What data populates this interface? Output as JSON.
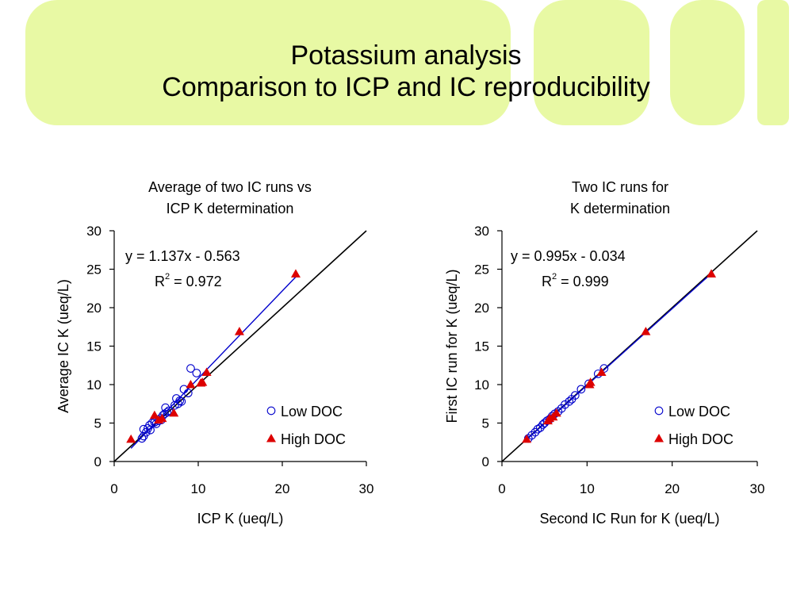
{
  "slide": {
    "title_line1": "Potassium analysis",
    "title_line2": "Comparison to ICP and IC reproducibility",
    "banner_color": "#e8f9a4"
  },
  "chart_data": [
    {
      "type": "scatter",
      "title": [
        "Average of two IC runs vs",
        "ICP K determination"
      ],
      "xlabel": "ICP K (ueq/L)",
      "ylabel": "Average IC K (ueq/L)",
      "xlim": [
        0,
        30
      ],
      "ylim": [
        0,
        30
      ],
      "xticks": [
        0,
        10,
        20,
        30
      ],
      "yticks": [
        0,
        5,
        10,
        15,
        20,
        25,
        30
      ],
      "grid": false,
      "legend_position": "bottom-right",
      "equation": "y = 1.137x - 0.563",
      "r_squared_prefix": "R",
      "r_squared_exponent": "2",
      "r_squared_value": " = 0.972",
      "identity_line": {
        "from": [
          0,
          0
        ],
        "to": [
          30,
          30
        ],
        "color": "#000000"
      },
      "trendline": {
        "slope": 1.137,
        "intercept": -0.563,
        "x_range": [
          2,
          21.6
        ],
        "color": "#0000cc"
      },
      "series": [
        {
          "name": "Low DOC",
          "marker": "circle",
          "color": "#0000cc",
          "points": [
            [
              3.3,
              3.0
            ],
            [
              3.5,
              3.3
            ],
            [
              3.5,
              4.2
            ],
            [
              3.8,
              3.8
            ],
            [
              4.0,
              4.3
            ],
            [
              4.2,
              4.7
            ],
            [
              4.3,
              4.1
            ],
            [
              4.5,
              5.0
            ],
            [
              4.8,
              5.1
            ],
            [
              5.0,
              4.9
            ],
            [
              5.3,
              5.3
            ],
            [
              5.5,
              5.6
            ],
            [
              5.6,
              5.4
            ],
            [
              5.8,
              6.0
            ],
            [
              6.0,
              6.2
            ],
            [
              6.1,
              7.0
            ],
            [
              6.3,
              6.4
            ],
            [
              6.5,
              6.6
            ],
            [
              7.2,
              7.3
            ],
            [
              7.4,
              8.2
            ],
            [
              7.6,
              7.5
            ],
            [
              7.8,
              7.9
            ],
            [
              8.0,
              7.8
            ],
            [
              8.3,
              9.4
            ],
            [
              8.8,
              8.9
            ],
            [
              9.1,
              12.1
            ],
            [
              9.8,
              11.5
            ]
          ]
        },
        {
          "name": "High DOC",
          "marker": "triangle",
          "color": "#dd0000",
          "points": [
            [
              2.0,
              2.9
            ],
            [
              4.8,
              6.0
            ],
            [
              5.3,
              5.4
            ],
            [
              5.7,
              5.6
            ],
            [
              7.1,
              6.3
            ],
            [
              9.1,
              10.0
            ],
            [
              10.3,
              10.2
            ],
            [
              10.5,
              10.3
            ],
            [
              11.0,
              11.6
            ],
            [
              14.9,
              16.9
            ],
            [
              21.6,
              24.4
            ]
          ]
        }
      ]
    },
    {
      "type": "scatter",
      "title": [
        "Two IC runs for",
        "K determination"
      ],
      "xlabel": "Second IC Run for K (ueq/L)",
      "ylabel": "First IC run for K (ueq/L)",
      "xlim": [
        0,
        30
      ],
      "ylim": [
        0,
        30
      ],
      "xticks": [
        0,
        10,
        20,
        30
      ],
      "yticks": [
        0,
        5,
        10,
        15,
        20,
        25,
        30
      ],
      "grid": false,
      "legend_position": "bottom-right",
      "equation": "y = 0.995x - 0.034",
      "r_squared_prefix": "R",
      "r_squared_exponent": "2",
      "r_squared_value": " = 0.999",
      "identity_line": {
        "from": [
          0,
          0
        ],
        "to": [
          30,
          30
        ],
        "color": "#000000"
      },
      "trendline": {
        "slope": 0.995,
        "intercept": -0.034,
        "x_range": [
          2.9,
          24.6
        ],
        "color": "#0000cc"
      },
      "series": [
        {
          "name": "Low DOC",
          "marker": "circle",
          "color": "#0000cc",
          "points": [
            [
              3.1,
              3.0
            ],
            [
              3.5,
              3.4
            ],
            [
              3.9,
              3.8
            ],
            [
              4.2,
              4.2
            ],
            [
              4.5,
              4.4
            ],
            [
              4.8,
              4.8
            ],
            [
              5.0,
              5.0
            ],
            [
              5.3,
              5.3
            ],
            [
              5.6,
              5.5
            ],
            [
              5.9,
              5.9
            ],
            [
              6.2,
              6.2
            ],
            [
              6.6,
              6.5
            ],
            [
              7.0,
              6.9
            ],
            [
              7.4,
              7.4
            ],
            [
              7.9,
              7.8
            ],
            [
              8.2,
              8.1
            ],
            [
              8.6,
              8.6
            ],
            [
              9.3,
              9.4
            ],
            [
              10.2,
              10.1
            ],
            [
              11.3,
              11.4
            ],
            [
              12.0,
              12.1
            ]
          ]
        },
        {
          "name": "High DOC",
          "marker": "triangle",
          "color": "#dd0000",
          "points": [
            [
              2.9,
              2.9
            ],
            [
              5.4,
              5.3
            ],
            [
              5.6,
              5.6
            ],
            [
              6.0,
              5.8
            ],
            [
              6.4,
              6.3
            ],
            [
              10.3,
              10.0
            ],
            [
              10.4,
              10.3
            ],
            [
              11.7,
              11.6
            ],
            [
              16.9,
              16.9
            ],
            [
              24.6,
              24.4
            ]
          ]
        }
      ]
    }
  ]
}
